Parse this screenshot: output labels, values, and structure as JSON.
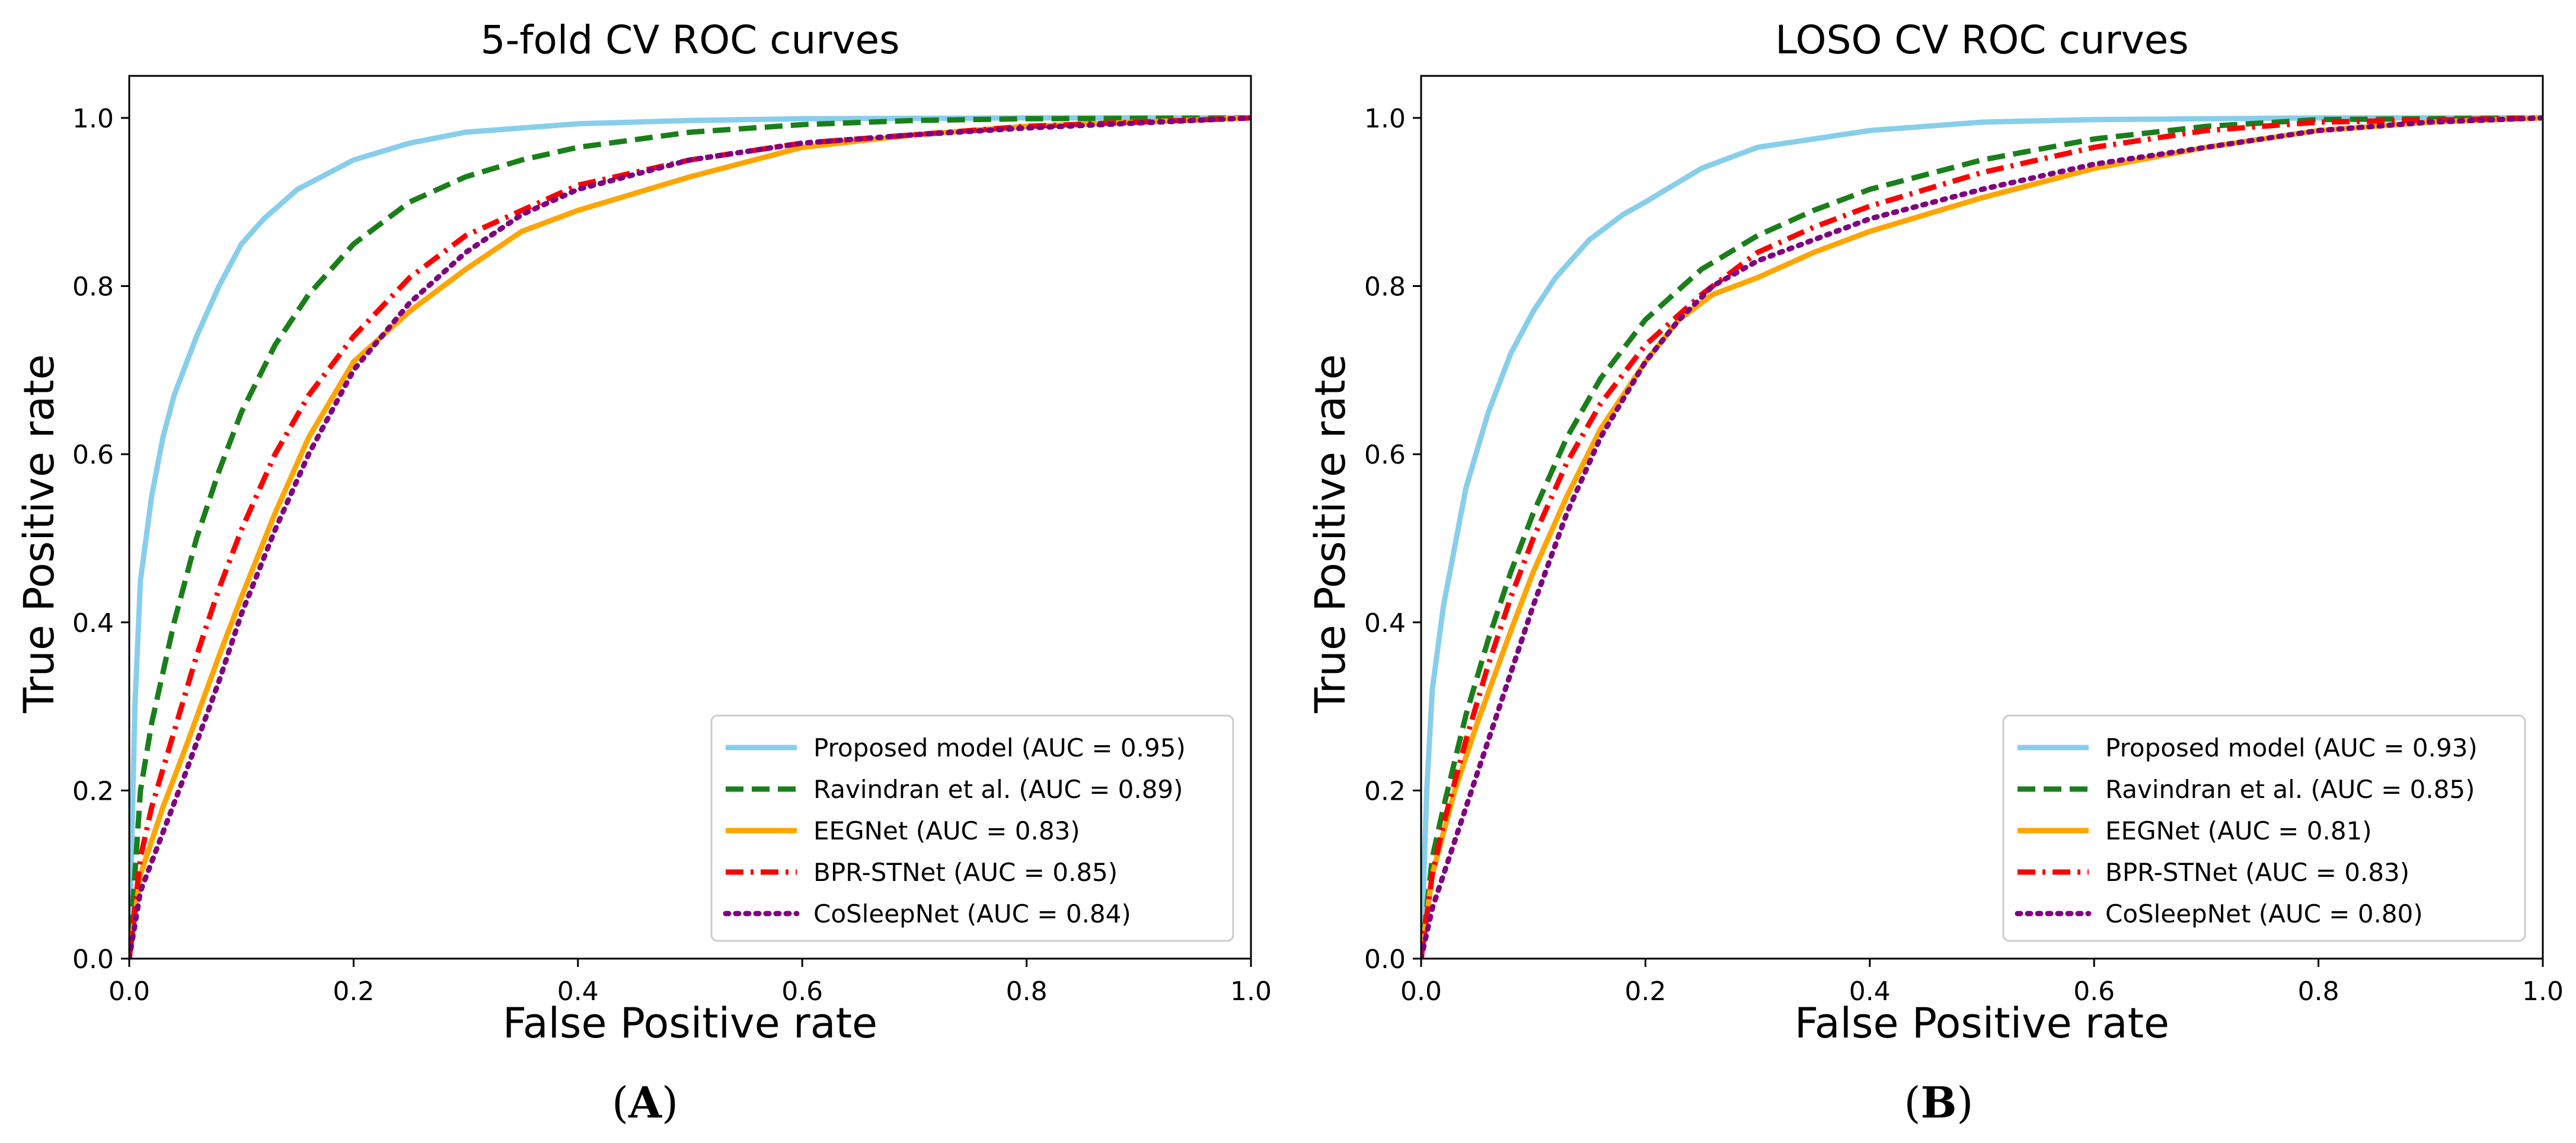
{
  "chart_data": [
    {
      "type": "line",
      "panel_label": "A",
      "title": "5-fold CV ROC curves",
      "xlabel": "False Positive rate",
      "ylabel": "True Positive rate",
      "xlim": [
        0.0,
        1.0
      ],
      "ylim": [
        0.0,
        1.05
      ],
      "xticks": [
        "0.0",
        "0.2",
        "0.4",
        "0.6",
        "0.8",
        "1.0"
      ],
      "yticks": [
        "0.0",
        "0.2",
        "0.4",
        "0.6",
        "0.8",
        "1.0"
      ],
      "grid": false,
      "legend_position": "lower-right",
      "series": [
        {
          "name": "Proposed model (AUC = 0.95)",
          "color": "#87ceeb",
          "style": "solid",
          "x": [
            0,
            0.005,
            0.01,
            0.02,
            0.03,
            0.04,
            0.06,
            0.08,
            0.1,
            0.12,
            0.15,
            0.2,
            0.25,
            0.3,
            0.4,
            0.5,
            0.6,
            0.8,
            1.0
          ],
          "y": [
            0,
            0.3,
            0.45,
            0.55,
            0.62,
            0.67,
            0.74,
            0.8,
            0.85,
            0.88,
            0.915,
            0.95,
            0.97,
            0.983,
            0.993,
            0.997,
            0.999,
            1.0,
            1.0
          ]
        },
        {
          "name": "Ravindran et al. (AUC = 0.89)",
          "color": "#1a7f1a",
          "style": "dashed",
          "x": [
            0,
            0.01,
            0.02,
            0.04,
            0.06,
            0.08,
            0.1,
            0.13,
            0.16,
            0.2,
            0.25,
            0.3,
            0.35,
            0.4,
            0.5,
            0.6,
            0.7,
            0.8,
            1.0
          ],
          "y": [
            0,
            0.2,
            0.28,
            0.4,
            0.5,
            0.58,
            0.65,
            0.73,
            0.79,
            0.85,
            0.9,
            0.93,
            0.95,
            0.965,
            0.983,
            0.992,
            0.997,
            0.999,
            1.0
          ]
        },
        {
          "name": "EEGNet (AUC = 0.83)",
          "color": "#ffa500",
          "style": "solid",
          "x": [
            0,
            0.01,
            0.03,
            0.05,
            0.08,
            0.1,
            0.13,
            0.16,
            0.2,
            0.25,
            0.3,
            0.35,
            0.4,
            0.5,
            0.6,
            0.7,
            0.8,
            0.9,
            1.0
          ],
          "y": [
            0,
            0.1,
            0.18,
            0.25,
            0.36,
            0.43,
            0.53,
            0.62,
            0.71,
            0.77,
            0.82,
            0.865,
            0.89,
            0.93,
            0.965,
            0.98,
            0.99,
            0.995,
            1.0
          ]
        },
        {
          "name": "BPR-STNet (AUC = 0.85)",
          "color": "#ff0000",
          "style": "dashdot",
          "x": [
            0,
            0.01,
            0.02,
            0.04,
            0.06,
            0.08,
            0.1,
            0.13,
            0.16,
            0.2,
            0.25,
            0.3,
            0.35,
            0.4,
            0.5,
            0.6,
            0.7,
            0.8,
            1.0
          ],
          "y": [
            0,
            0.12,
            0.18,
            0.27,
            0.36,
            0.44,
            0.51,
            0.6,
            0.67,
            0.74,
            0.81,
            0.86,
            0.89,
            0.92,
            0.95,
            0.97,
            0.98,
            0.99,
            1.0
          ]
        },
        {
          "name": "CoSleepNet (AUC = 0.84)",
          "color": "#800080",
          "style": "dotted",
          "x": [
            0,
            0.01,
            0.03,
            0.05,
            0.08,
            0.1,
            0.13,
            0.16,
            0.2,
            0.25,
            0.3,
            0.35,
            0.4,
            0.5,
            0.6,
            0.7,
            0.8,
            0.9,
            1.0
          ],
          "y": [
            0,
            0.08,
            0.15,
            0.22,
            0.33,
            0.41,
            0.51,
            0.6,
            0.7,
            0.78,
            0.84,
            0.885,
            0.915,
            0.95,
            0.97,
            0.98,
            0.988,
            0.994,
            1.0
          ]
        }
      ]
    },
    {
      "type": "line",
      "panel_label": "B",
      "title": "LOSO CV ROC curves",
      "xlabel": "False Positive rate",
      "ylabel": "True Positive rate",
      "xlim": [
        0.0,
        1.0
      ],
      "ylim": [
        0.0,
        1.05
      ],
      "xticks": [
        "0.0",
        "0.2",
        "0.4",
        "0.6",
        "0.8",
        "1.0"
      ],
      "yticks": [
        "0.0",
        "0.2",
        "0.4",
        "0.6",
        "0.8",
        "1.0"
      ],
      "grid": false,
      "legend_position": "lower-right",
      "series": [
        {
          "name": "Proposed model (AUC = 0.93)",
          "color": "#87ceeb",
          "style": "solid",
          "x": [
            0,
            0.005,
            0.01,
            0.02,
            0.04,
            0.06,
            0.08,
            0.1,
            0.12,
            0.15,
            0.18,
            0.2,
            0.25,
            0.3,
            0.4,
            0.5,
            0.6,
            0.8,
            1.0
          ],
          "y": [
            0,
            0.2,
            0.32,
            0.42,
            0.56,
            0.65,
            0.72,
            0.77,
            0.81,
            0.855,
            0.885,
            0.9,
            0.94,
            0.965,
            0.985,
            0.995,
            0.998,
            1.0,
            1.0
          ]
        },
        {
          "name": "Ravindran et al. (AUC = 0.85)",
          "color": "#1a7f1a",
          "style": "dashed",
          "x": [
            0,
            0.01,
            0.02,
            0.04,
            0.06,
            0.08,
            0.1,
            0.13,
            0.16,
            0.2,
            0.25,
            0.3,
            0.35,
            0.4,
            0.5,
            0.6,
            0.7,
            0.8,
            1.0
          ],
          "y": [
            0,
            0.12,
            0.18,
            0.29,
            0.38,
            0.46,
            0.53,
            0.62,
            0.69,
            0.76,
            0.82,
            0.86,
            0.89,
            0.915,
            0.95,
            0.975,
            0.99,
            0.998,
            1.0
          ]
        },
        {
          "name": "EEGNet (AUC = 0.81)",
          "color": "#ffa500",
          "style": "solid",
          "x": [
            0,
            0.01,
            0.03,
            0.05,
            0.08,
            0.1,
            0.13,
            0.16,
            0.2,
            0.23,
            0.26,
            0.3,
            0.35,
            0.4,
            0.5,
            0.6,
            0.7,
            0.8,
            0.9,
            1.0
          ],
          "y": [
            0,
            0.1,
            0.2,
            0.28,
            0.39,
            0.46,
            0.55,
            0.63,
            0.71,
            0.76,
            0.79,
            0.81,
            0.84,
            0.865,
            0.905,
            0.94,
            0.965,
            0.985,
            0.995,
            1.0
          ]
        },
        {
          "name": "BPR-STNet (AUC = 0.83)",
          "color": "#ff0000",
          "style": "dashdot",
          "x": [
            0,
            0.01,
            0.02,
            0.04,
            0.06,
            0.08,
            0.1,
            0.13,
            0.16,
            0.2,
            0.25,
            0.3,
            0.35,
            0.4,
            0.5,
            0.6,
            0.7,
            0.8,
            1.0
          ],
          "y": [
            0,
            0.1,
            0.16,
            0.26,
            0.35,
            0.43,
            0.5,
            0.59,
            0.66,
            0.73,
            0.79,
            0.84,
            0.87,
            0.895,
            0.935,
            0.965,
            0.985,
            0.995,
            1.0
          ]
        },
        {
          "name": "CoSleepNet (AUC = 0.80)",
          "color": "#800080",
          "style": "dotted",
          "x": [
            0,
            0.01,
            0.03,
            0.05,
            0.08,
            0.1,
            0.13,
            0.16,
            0.2,
            0.23,
            0.26,
            0.3,
            0.35,
            0.4,
            0.5,
            0.6,
            0.7,
            0.8,
            0.9,
            1.0
          ],
          "y": [
            0,
            0.06,
            0.14,
            0.22,
            0.34,
            0.42,
            0.53,
            0.62,
            0.71,
            0.76,
            0.8,
            0.83,
            0.855,
            0.88,
            0.915,
            0.945,
            0.965,
            0.985,
            0.995,
            1.0
          ]
        }
      ]
    }
  ]
}
